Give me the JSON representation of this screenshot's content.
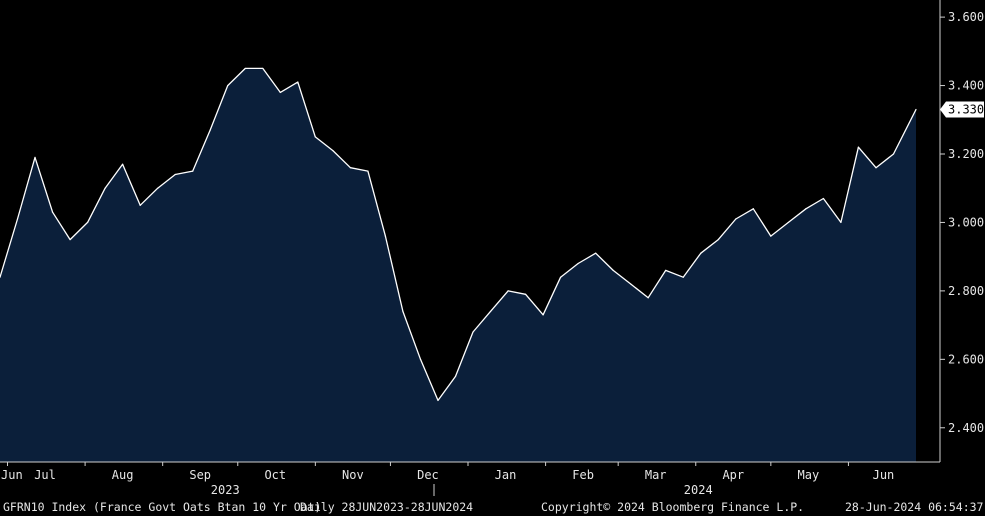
{
  "chart_data": {
    "type": "area",
    "ylim": [
      2.3,
      3.65
    ],
    "y_ticks": [
      "3.600",
      "3.400",
      "3.200",
      "3.000",
      "2.800",
      "2.600",
      "2.400"
    ],
    "x_tick_labels": [
      "Jun",
      "Jul",
      "Aug",
      "Sep",
      "Oct",
      "Nov",
      "Dec",
      "Jan",
      "Feb",
      "Mar",
      "Apr",
      "May",
      "Jun"
    ],
    "year_labels": [
      "2023",
      "2024"
    ],
    "last_value_label": "3.330",
    "grid": false,
    "series": [
      {
        "line_color": "#ffffff",
        "fill_color": "#0b1f3a",
        "x": [
          "2023-06-28",
          "2023-07-05",
          "2023-07-12",
          "2023-07-19",
          "2023-07-26",
          "2023-08-02",
          "2023-08-09",
          "2023-08-16",
          "2023-08-23",
          "2023-08-30",
          "2023-09-06",
          "2023-09-13",
          "2023-09-20",
          "2023-09-27",
          "2023-10-04",
          "2023-10-11",
          "2023-10-18",
          "2023-10-25",
          "2023-11-01",
          "2023-11-08",
          "2023-11-15",
          "2023-11-22",
          "2023-11-29",
          "2023-12-06",
          "2023-12-13",
          "2023-12-20",
          "2023-12-27",
          "2024-01-03",
          "2024-01-10",
          "2024-01-17",
          "2024-01-24",
          "2024-01-31",
          "2024-02-07",
          "2024-02-14",
          "2024-02-21",
          "2024-02-28",
          "2024-03-06",
          "2024-03-13",
          "2024-03-20",
          "2024-03-27",
          "2024-04-03",
          "2024-04-10",
          "2024-04-17",
          "2024-04-24",
          "2024-05-01",
          "2024-05-08",
          "2024-05-15",
          "2024-05-22",
          "2024-05-29",
          "2024-06-05",
          "2024-06-12",
          "2024-06-19",
          "2024-06-28"
        ],
        "values": [
          2.84,
          3.01,
          3.19,
          3.03,
          2.95,
          3.0,
          3.1,
          3.17,
          3.05,
          3.1,
          3.14,
          3.15,
          3.27,
          3.4,
          3.45,
          3.45,
          3.38,
          3.41,
          3.25,
          3.21,
          3.16,
          3.15,
          2.96,
          2.74,
          2.6,
          2.48,
          2.55,
          2.68,
          2.74,
          2.8,
          2.79,
          2.73,
          2.84,
          2.88,
          2.91,
          2.86,
          2.82,
          2.78,
          2.86,
          2.84,
          2.91,
          2.95,
          3.01,
          3.04,
          2.96,
          3.0,
          3.04,
          3.07,
          3.0,
          3.22,
          3.16,
          3.2,
          3.33
        ]
      }
    ]
  },
  "footer": {
    "ticker": "GFRN10 Index (France Govt Oats Btan 10 Yr Oat)",
    "range": "Daily 28JUN2023-28JUN2024",
    "copyright": "Copyright© 2024 Bloomberg Finance L.P.",
    "timestamp": "28-Jun-2024 06:54:37"
  }
}
